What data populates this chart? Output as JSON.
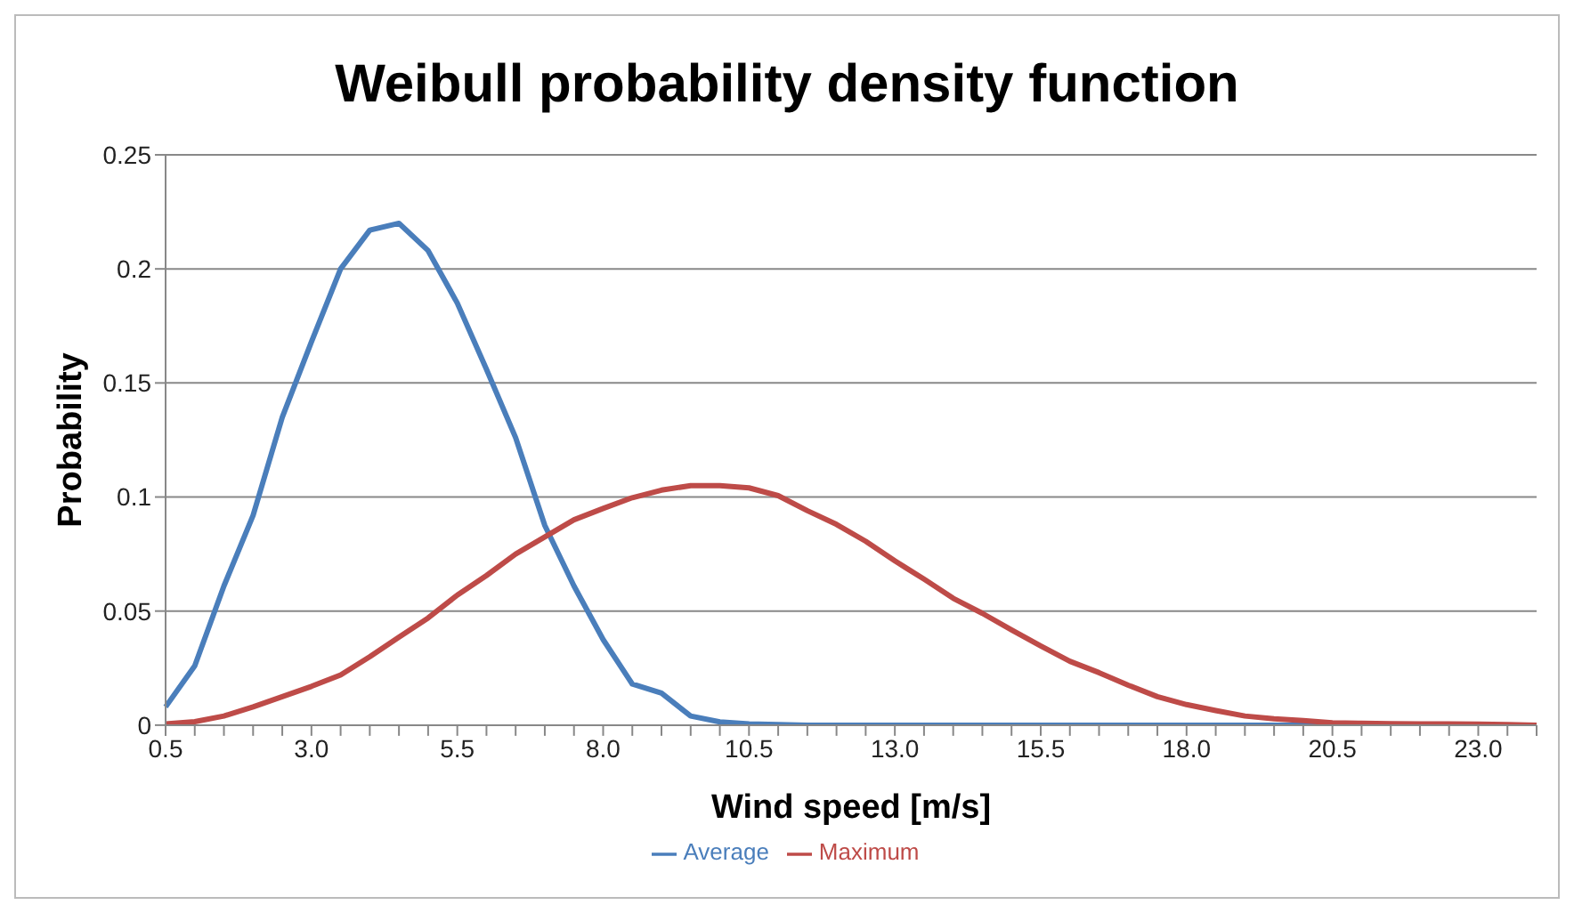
{
  "chart_data": {
    "type": "line",
    "title": "Weibull probability density function",
    "xlabel": "Wind speed [m/s]",
    "ylabel": "Probability",
    "categories": [
      "0.5",
      null,
      null,
      null,
      null,
      "3.0",
      null,
      null,
      null,
      null,
      "5.5",
      null,
      null,
      null,
      null,
      "8.0",
      null,
      null,
      null,
      null,
      "10.5",
      null,
      null,
      null,
      null,
      "13.0",
      null,
      null,
      null,
      null,
      "15.5",
      null,
      null,
      null,
      null,
      "18.0",
      null,
      null,
      null,
      null,
      "20.5",
      null,
      null,
      null,
      null,
      "23.0",
      null,
      null
    ],
    "series": [
      {
        "name": "Average",
        "color": "#4a7ebb",
        "values": [
          0.008,
          0.026,
          0.061,
          0.092,
          0.135,
          0.168,
          0.2,
          0.217,
          0.22,
          0.208,
          0.185,
          0.156,
          0.126,
          0.0875,
          0.061,
          0.0375,
          0.018,
          0.014,
          0.004,
          0.0014,
          0.0005,
          0.0002,
          0,
          0,
          0,
          0,
          0,
          0,
          0,
          0,
          0,
          0,
          0,
          0,
          0,
          0,
          0,
          0,
          0,
          0,
          0,
          0,
          null,
          null,
          null,
          null,
          null,
          null
        ]
      },
      {
        "name": "Maximum",
        "color": "#be4b48",
        "values": [
          0.0005,
          0.0015,
          0.004,
          0.008,
          0.0125,
          0.017,
          0.022,
          0.03,
          0.0386,
          0.047,
          0.057,
          0.0656,
          0.075,
          0.0825,
          0.09,
          0.095,
          0.0997,
          0.103,
          0.105,
          0.105,
          0.104,
          0.1006,
          0.094,
          0.088,
          0.0806,
          0.072,
          0.064,
          0.0556,
          0.049,
          0.0417,
          0.0347,
          0.028,
          0.023,
          0.0175,
          0.0125,
          0.009,
          0.0064,
          0.004,
          0.0028,
          0.002,
          0.001,
          0.0008,
          0.0006,
          0.0005,
          0.0005,
          0.0004,
          0.0002,
          0
        ]
      }
    ],
    "ylim": [
      0,
      0.25
    ],
    "yticks": [
      0,
      0.05,
      0.1,
      0.15,
      0.2,
      0.25
    ],
    "grid": "y",
    "legend": "bottom",
    "marker": "none",
    "line_style": "solid"
  }
}
